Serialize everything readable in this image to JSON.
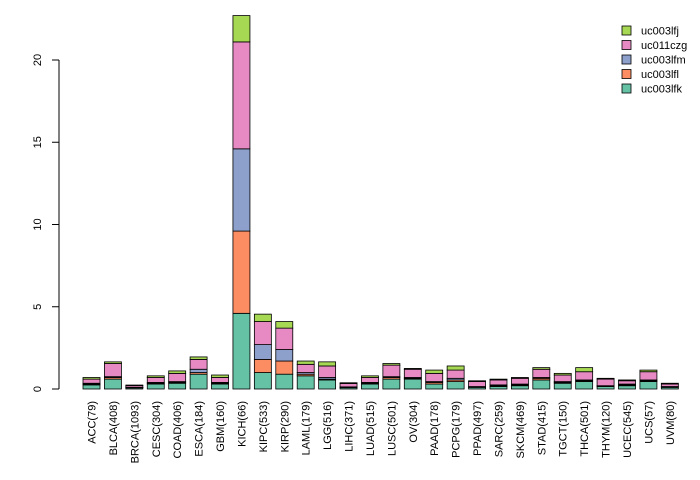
{
  "chart_data": {
    "type": "bar",
    "stacked": true,
    "categories": [
      "ACC(79)",
      "BLCA(408)",
      "BRCA(1093)",
      "CESC(304)",
      "COAD(406)",
      "ESCA(184)",
      "GBM(160)",
      "KICH(66)",
      "KIPC(533)",
      "KIRP(290)",
      "LAML(179)",
      "LGG(516)",
      "LIHC(371)",
      "LUAD(515)",
      "LUSC(501)",
      "OV(304)",
      "PAAD(178)",
      "PCPG(179)",
      "PPAD(497)",
      "SARC(259)",
      "SKCM(469)",
      "STAD(415)",
      "TGCT(150)",
      "THCA(501)",
      "THYM(120)",
      "UCEC(545)",
      "UCS(57)",
      "UVM(80)"
    ],
    "series": [
      {
        "name": "uc003lfk",
        "color": "#66c2a5",
        "values": [
          0.25,
          0.6,
          0.07,
          0.3,
          0.35,
          0.9,
          0.3,
          4.6,
          1.0,
          0.9,
          0.8,
          0.55,
          0.08,
          0.3,
          0.6,
          0.6,
          0.3,
          0.45,
          0.1,
          0.15,
          0.2,
          0.55,
          0.35,
          0.45,
          0.15,
          0.2,
          0.45,
          0.1
        ]
      },
      {
        "name": "uc003lfl",
        "color": "#fc8d62",
        "values": [
          0.05,
          0.1,
          0.02,
          0.05,
          0.05,
          0.1,
          0.05,
          5.0,
          0.8,
          0.8,
          0.1,
          0.05,
          0.02,
          0.05,
          0.1,
          0.05,
          0.1,
          0.1,
          0.03,
          0.05,
          0.05,
          0.1,
          0.05,
          0.05,
          0.03,
          0.05,
          0.05,
          0.03
        ]
      },
      {
        "name": "uc003lfm",
        "color": "#8da0cb",
        "values": [
          0.05,
          0.05,
          0.02,
          0.05,
          0.05,
          0.2,
          0.05,
          5.0,
          0.9,
          0.7,
          0.1,
          0.1,
          0.03,
          0.05,
          0.05,
          0.05,
          0.05,
          0.1,
          0.02,
          0.05,
          0.05,
          0.05,
          0.05,
          0.05,
          0.02,
          0.05,
          0.05,
          0.02
        ]
      },
      {
        "name": "uc011czg",
        "color": "#e78ac3",
        "values": [
          0.25,
          0.8,
          0.1,
          0.3,
          0.5,
          0.6,
          0.3,
          6.5,
          1.4,
          1.3,
          0.5,
          0.7,
          0.2,
          0.3,
          0.7,
          0.5,
          0.5,
          0.5,
          0.3,
          0.3,
          0.35,
          0.5,
          0.4,
          0.5,
          0.4,
          0.2,
          0.5,
          0.15
        ]
      },
      {
        "name": "uc003lfj",
        "color": "#a6d854",
        "values": [
          0.1,
          0.1,
          0.03,
          0.1,
          0.15,
          0.15,
          0.15,
          1.6,
          0.45,
          0.4,
          0.2,
          0.25,
          0.05,
          0.1,
          0.1,
          0.05,
          0.2,
          0.25,
          0.05,
          0.05,
          0.05,
          0.1,
          0.1,
          0.25,
          0.05,
          0.05,
          0.1,
          0.05
        ]
      }
    ],
    "legend_order": [
      "uc003lfj",
      "uc011czg",
      "uc003lfm",
      "uc003lfl",
      "uc003lfk"
    ],
    "legend_position": "top-right",
    "y_ticks": [
      0,
      5,
      10,
      15,
      20
    ],
    "ylim": [
      0,
      23
    ],
    "grid": false,
    "title": "",
    "xlabel": "",
    "ylabel": ""
  }
}
